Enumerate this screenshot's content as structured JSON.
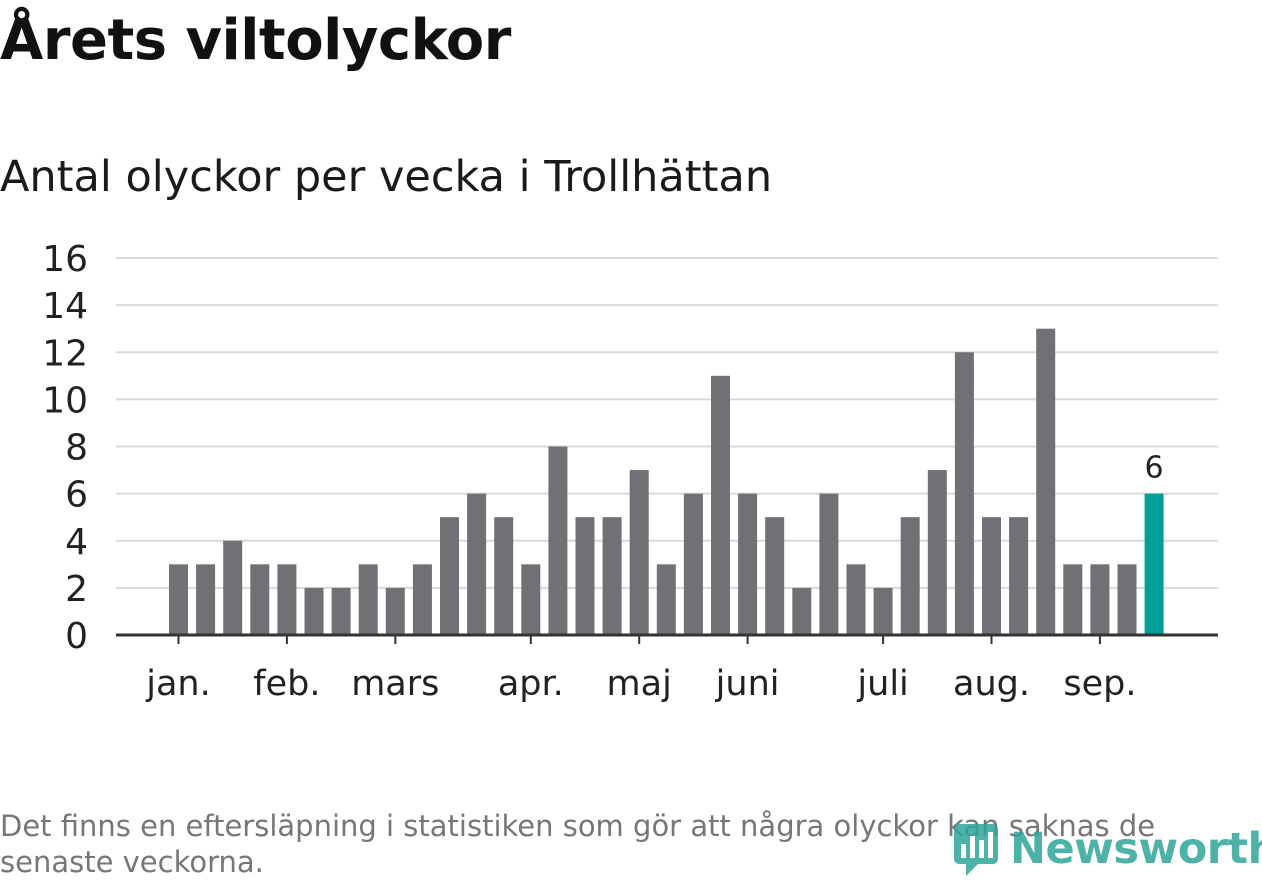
{
  "title": "Årets viltolyckor",
  "subtitle": "Antal olyckor per vecka i Trollhättan",
  "footnote": "Det finns en eftersläpning i statistiken som gör att några olyckor kan saknas de senaste veckorna.",
  "logo": {
    "text": "Newsworthy",
    "icon": "newsworthy-logo-icon",
    "color": "#2fa59a"
  },
  "chart_data": {
    "type": "bar",
    "ylim": [
      0,
      16
    ],
    "yticks": [
      0,
      2,
      4,
      6,
      8,
      10,
      12,
      14,
      16
    ],
    "grid": true,
    "values": [
      3,
      3,
      4,
      3,
      3,
      2,
      2,
      3,
      2,
      3,
      5,
      6,
      5,
      3,
      8,
      5,
      5,
      7,
      3,
      6,
      11,
      6,
      5,
      2,
      6,
      3,
      2,
      5,
      7,
      12,
      5,
      5,
      13,
      3,
      3,
      3,
      6
    ],
    "month_labels": [
      {
        "label": "jan.",
        "week": 1
      },
      {
        "label": "feb.",
        "week": 5
      },
      {
        "label": "mars",
        "week": 9
      },
      {
        "label": "apr.",
        "week": 14
      },
      {
        "label": "maj",
        "week": 18
      },
      {
        "label": "juni",
        "week": 22
      },
      {
        "label": "juli",
        "week": 27
      },
      {
        "label": "aug.",
        "week": 31
      },
      {
        "label": "sep.",
        "week": 35
      }
    ],
    "highlight": {
      "week": 37,
      "value": 6,
      "label": "6"
    },
    "colors": {
      "bar": "#717075",
      "highlight": "#00a19a",
      "grid": "#d9d9d9",
      "axis": "#333333"
    }
  }
}
